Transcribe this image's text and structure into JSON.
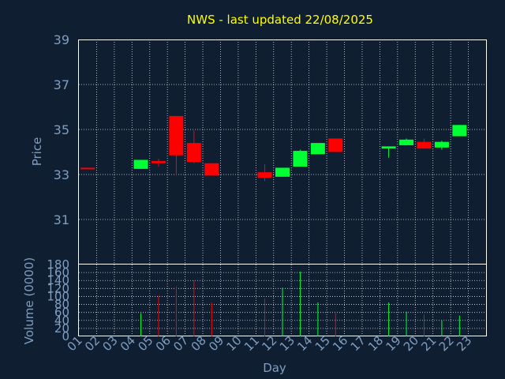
{
  "chart_data": {
    "type": "candlestick",
    "title": "NWS - last updated 22/08/2025",
    "colors": {
      "up": "#00ff33",
      "down": "#ff0000",
      "title": "#ffff00",
      "axis_text": "#7f9fc2",
      "background": "#0f1e30",
      "grid": "#ffffff"
    },
    "price_panel": {
      "ylabel": "Price",
      "ylim": [
        29,
        39
      ],
      "yticks": [
        "31",
        "33",
        "35",
        "37",
        "39"
      ],
      "grid": true
    },
    "volume_panel": {
      "ylabel": "Volume (0000)",
      "ylim": [
        0,
        180
      ],
      "yticks": [
        "0",
        "20",
        "40",
        "60",
        "80",
        "100",
        "120",
        "140",
        "160",
        "180"
      ],
      "grid": true
    },
    "xlabel": "Day",
    "days": [
      "01",
      "02",
      "03",
      "04",
      "05",
      "06",
      "07",
      "08",
      "09",
      "10",
      "11",
      "12",
      "13",
      "14",
      "15",
      "16",
      "17",
      "18",
      "19",
      "20",
      "21",
      "22",
      "23"
    ],
    "candles": [
      {
        "day": "01",
        "open": 33.3,
        "high": 33.3,
        "low": 33.25,
        "close": 33.25,
        "volume": 0
      },
      {
        "day": "04",
        "open": 33.25,
        "high": 33.65,
        "low": 33.25,
        "close": 33.65,
        "volume": 58
      },
      {
        "day": "05",
        "open": 33.6,
        "high": 33.7,
        "low": 33.35,
        "close": 33.5,
        "volume": 102
      },
      {
        "day": "06",
        "open": 35.6,
        "high": 35.6,
        "low": 32.95,
        "close": 33.85,
        "volume": 125
      },
      {
        "day": "07",
        "open": 34.4,
        "high": 34.95,
        "low": 33.5,
        "close": 33.55,
        "volume": 140
      },
      {
        "day": "08",
        "open": 33.5,
        "high": 33.5,
        "low": 32.95,
        "close": 32.95,
        "volume": 85
      },
      {
        "day": "11",
        "open": 33.1,
        "high": 33.45,
        "low": 32.7,
        "close": 32.85,
        "volume": 95
      },
      {
        "day": "12",
        "open": 32.9,
        "high": 33.3,
        "low": 32.9,
        "close": 33.3,
        "volume": 122
      },
      {
        "day": "13",
        "open": 33.35,
        "high": 34.1,
        "low": 33.35,
        "close": 34.05,
        "volume": 162
      },
      {
        "day": "14",
        "open": 33.9,
        "high": 34.4,
        "low": 33.9,
        "close": 34.4,
        "volume": 85
      },
      {
        "day": "15",
        "open": 34.6,
        "high": 34.6,
        "low": 34.0,
        "close": 34.0,
        "volume": 58
      },
      {
        "day": "18",
        "open": 34.15,
        "high": 34.25,
        "low": 33.75,
        "close": 34.25,
        "volume": 85
      },
      {
        "day": "19",
        "open": 34.3,
        "high": 34.6,
        "low": 34.3,
        "close": 34.55,
        "volume": 62
      },
      {
        "day": "20",
        "open": 34.45,
        "high": 34.6,
        "low": 34.15,
        "close": 34.15,
        "volume": 55
      },
      {
        "day": "21",
        "open": 34.2,
        "high": 34.5,
        "low": 34.1,
        "close": 34.45,
        "volume": 40
      },
      {
        "day": "22",
        "open": 34.7,
        "high": 35.2,
        "low": 34.7,
        "close": 35.2,
        "volume": 52
      }
    ]
  }
}
